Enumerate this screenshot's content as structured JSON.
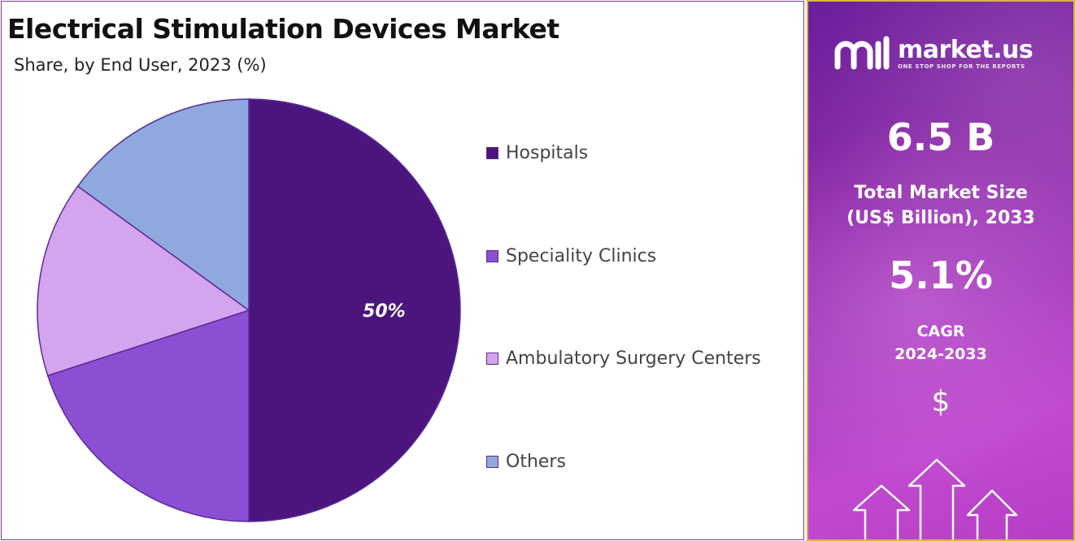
{
  "chart": {
    "title": "Electrical Stimulation Devices Market",
    "subtitle": "Share, by End User, 2023 (%)"
  },
  "chart_data": {
    "type": "pie",
    "title": "Electrical Stimulation Devices Market",
    "subtitle": "Share, by End User, 2023 (%)",
    "categories": [
      "Hospitals",
      "Speciality Clinics",
      "Ambulatory Surgery Centers",
      "Others"
    ],
    "values": [
      50,
      20,
      15,
      15
    ],
    "colors": [
      "#4b157d",
      "#8c4fd3",
      "#d4a5ee",
      "#8fa9de"
    ],
    "data_labels": [
      "50%",
      "",
      "",
      ""
    ],
    "legend_position": "right"
  },
  "side_panel": {
    "brand_name": "market.us",
    "brand_tagline": "ONE STOP SHOP FOR THE REPORTS",
    "market_size": "6.5 B",
    "market_size_label_line1": "Total Market Size",
    "market_size_label_line2": "(US$ Billion), 2033",
    "cagr": "5.1%",
    "cagr_label_line1": "CAGR",
    "cagr_label_line2": "2024-2033",
    "currency_symbol": "$",
    "icons": [
      "market-us-logo-icon",
      "up-arrows-icon"
    ]
  }
}
